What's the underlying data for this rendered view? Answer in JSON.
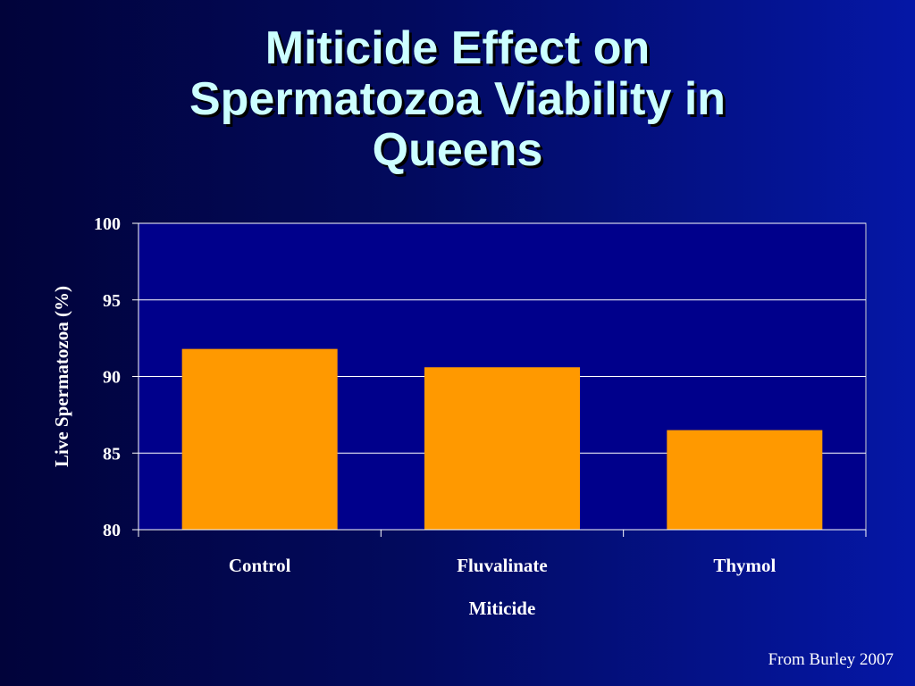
{
  "slide": {
    "title_lines": [
      "Miticide Effect on",
      "Spermatozoa Viability in",
      "Queens"
    ],
    "source": "From Burley 2007"
  },
  "colors": {
    "background_dark": "#01033a",
    "background_light": "#0517a6",
    "plot_area": "#00008b",
    "bar": "#ff9900",
    "title": "#ccffff"
  },
  "chart_data": {
    "type": "bar",
    "categories": [
      "Control",
      "Fluvalinate",
      "Thymol"
    ],
    "values": [
      91.8,
      90.6,
      86.5
    ],
    "title": "",
    "xlabel": "Miticide",
    "ylabel": "Live Spermatozoa (%)",
    "ylim": [
      80,
      100
    ],
    "yticks": [
      "80",
      "85",
      "90",
      "95",
      "100"
    ],
    "grid": true
  }
}
